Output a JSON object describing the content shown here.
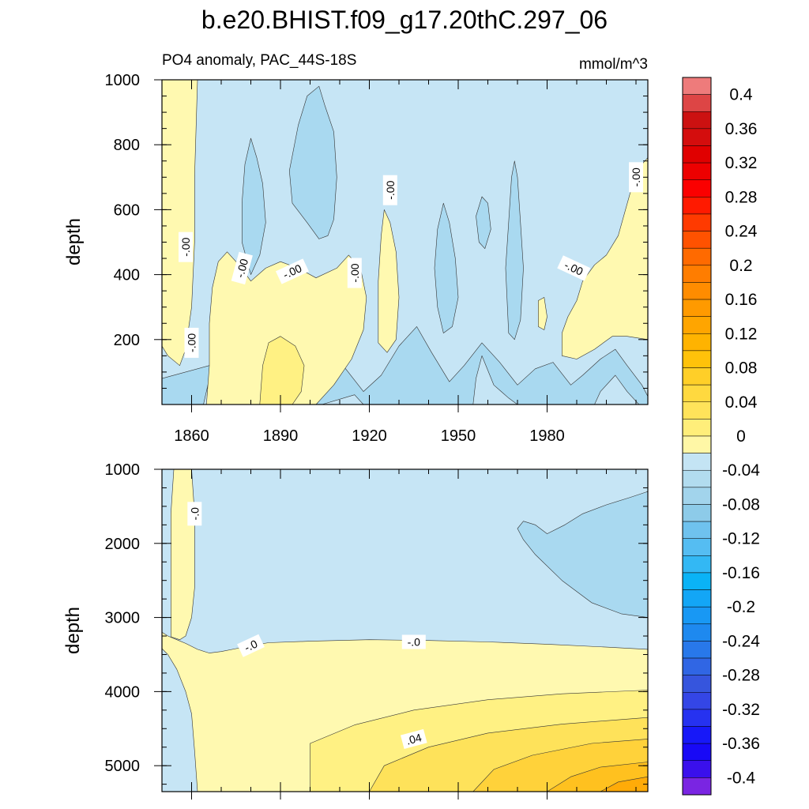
{
  "chart_data": [
    {
      "type": "heatmap",
      "title": "b.e20.BHIST.f09_g17.20thC.297_06",
      "subtitle_left": "PO4 anomaly, PAC_44S-18S",
      "subtitle_right": "mmol/m^3",
      "ylabel": "depth",
      "xlabel": "",
      "xlim": [
        1850,
        2014
      ],
      "ylim": [
        1000,
        0
      ],
      "y_reversed": true,
      "x_ticks": [
        1860,
        1890,
        1920,
        1950,
        1980
      ],
      "y_ticks": [
        200,
        400,
        600,
        800,
        1000
      ],
      "grid": false,
      "contour_labels": [
        {
          "x": 1860,
          "y": 190,
          "text": "-.00",
          "rotation": -90
        },
        {
          "x": 1858,
          "y": 485,
          "text": "-.00",
          "rotation": -90
        },
        {
          "x": 1877,
          "y": 420,
          "text": "-.00",
          "rotation": -75
        },
        {
          "x": 1894,
          "y": 410,
          "text": "-.00",
          "rotation": -25
        },
        {
          "x": 1915,
          "y": 405,
          "text": "-.00",
          "rotation": -90
        },
        {
          "x": 1927,
          "y": 660,
          "text": "-.00",
          "rotation": -90
        },
        {
          "x": 1989,
          "y": 420,
          "text": "-.00",
          "rotation": 25
        },
        {
          "x": 2010,
          "y": 700,
          "text": "-.00",
          "rotation": -90
        }
      ]
    },
    {
      "type": "heatmap",
      "ylabel": "depth",
      "xlabel": "",
      "xlim": [
        1850,
        2014
      ],
      "ylim": [
        1000,
        5350
      ],
      "y_reversed": true,
      "x_ticks": [
        1860,
        1890,
        1920,
        1950,
        1980
      ],
      "y_ticks": [
        1000,
        2000,
        3000,
        4000,
        5000
      ],
      "grid": false,
      "contour_labels": [
        {
          "x": 1861,
          "y": 1600,
          "text": "-.0",
          "rotation": -90
        },
        {
          "x": 1880,
          "y": 3380,
          "text": "-.0",
          "rotation": -25
        },
        {
          "x": 1935,
          "y": 3330,
          "text": "-.0",
          "rotation": 0
        },
        {
          "x": 1935,
          "y": 4640,
          "text": ".04",
          "rotation": -15
        }
      ]
    }
  ],
  "colorbar": {
    "levels": [
      -0.42,
      -0.4,
      -0.38,
      -0.36,
      -0.34,
      -0.32,
      -0.3,
      -0.28,
      -0.26,
      -0.24,
      -0.22,
      -0.2,
      -0.18,
      -0.16,
      -0.14,
      -0.12,
      -0.1,
      -0.08,
      -0.06,
      -0.04,
      -0.02,
      0.0,
      0.02,
      0.04,
      0.06,
      0.08,
      0.1,
      0.12,
      0.14,
      0.16,
      0.18,
      0.2,
      0.22,
      0.24,
      0.26,
      0.28,
      0.3,
      0.32,
      0.34,
      0.36,
      0.38,
      0.4,
      0.42
    ],
    "tick_labels": [
      "0.4",
      "0.36",
      "0.32",
      "0.28",
      "0.24",
      "0.2",
      "0.16",
      "0.12",
      "0.08",
      "0.04",
      "0",
      "-0.04",
      "-0.08",
      "-0.12",
      "-0.16",
      "-0.2",
      "-0.24",
      "-0.28",
      "-0.32",
      "-0.36",
      "-0.4"
    ],
    "tick_values": [
      0.4,
      0.36,
      0.32,
      0.28,
      0.24,
      0.2,
      0.16,
      0.12,
      0.08,
      0.04,
      0,
      -0.04,
      -0.08,
      -0.12,
      -0.16,
      -0.2,
      -0.24,
      -0.28,
      -0.32,
      -0.36,
      -0.4
    ],
    "colors_top_to_bottom": [
      "#f9b3b3",
      "#ee7b7b",
      "#dd4545",
      "#cc1111",
      "#d40d0d",
      "#e00000",
      "#ed0000",
      "#fb0000",
      "#ff1a00",
      "#ff3a00",
      "#ff5200",
      "#ff6a00",
      "#ff7d00",
      "#ff8c00",
      "#ff9a00",
      "#ffa500",
      "#ffb300",
      "#ffc20a",
      "#ffcf28",
      "#ffd93f",
      "#ffe35a",
      "#ffee7a",
      "#fff7a6",
      "#c4e4f4",
      "#b2dcef",
      "#a2d4ec",
      "#8dcbe9",
      "#6fc2ee",
      "#55bdf2",
      "#33b8f4",
      "#0ab3f6",
      "#13a6f6",
      "#1898f4",
      "#1e89ef",
      "#2878ea",
      "#3066e4",
      "#3655dd",
      "#3446e6",
      "#2632f0",
      "#1718f8",
      "#1809f6",
      "#3a10ec",
      "#7a25e2"
    ]
  },
  "field_colors": {
    "neg_weak": "#c6e5f5",
    "neg_mod": "#a9d9f0",
    "pos_weak": "#fff9b0",
    "pos_light": "#fff183",
    "pos_mid": "#fee25a",
    "pos_strong": "#ffd23a",
    "pos_deep": "#ffc11f",
    "pos_max": "#ffab08"
  }
}
